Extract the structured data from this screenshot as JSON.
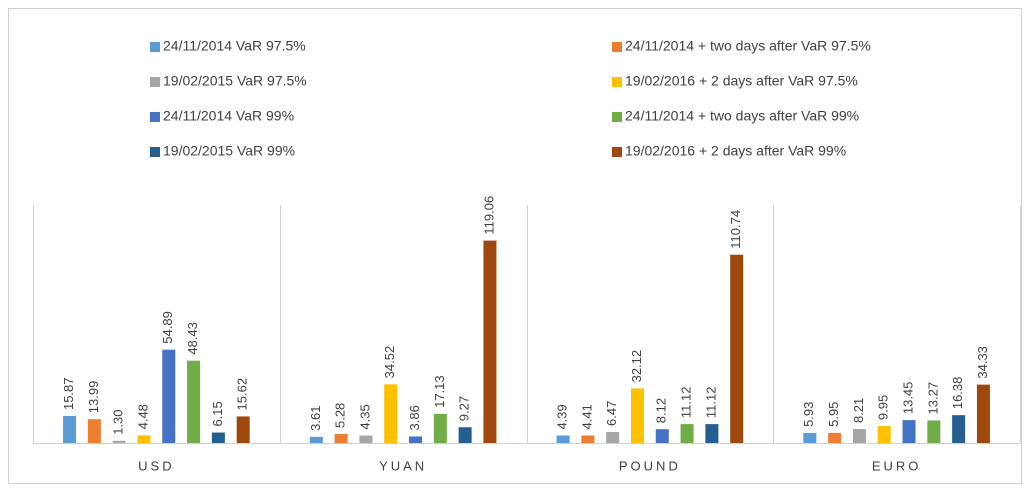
{
  "chart_data": {
    "type": "bar",
    "categories": [
      "USD",
      "YUAN",
      "POUND",
      "EURO"
    ],
    "series": [
      {
        "name": "24/11/2014 VaR 97.5%",
        "color": "#5b9bd5",
        "values": [
          15.87,
          3.61,
          4.39,
          5.93
        ],
        "value_labels": [
          "15.87",
          "3.61",
          "4.39",
          "5.93"
        ]
      },
      {
        "name": "24/11/2014 + two days after VaR 97.5%",
        "color": "#ed7d31",
        "values": [
          13.99,
          5.28,
          4.41,
          5.95
        ],
        "value_labels": [
          "13.99",
          "5.28",
          "4.41",
          "5.95"
        ]
      },
      {
        "name": "19/02/2015 VaR 97.5%",
        "color": "#a5a5a5",
        "values": [
          1.3,
          4.35,
          6.47,
          8.21
        ],
        "value_labels": [
          "1.30",
          "4.35",
          "6.47",
          "8.21"
        ]
      },
      {
        "name": "19/02/2016 + 2 days after VaR 97.5%",
        "color": "#ffc000",
        "values": [
          4.48,
          34.52,
          32.12,
          9.95
        ],
        "value_labels": [
          "4.48",
          "34.52",
          "32.12",
          "9.95"
        ]
      },
      {
        "name": "24/11/2014 VaR 99%",
        "color": "#4472c4",
        "values": [
          54.89,
          3.86,
          8.12,
          13.45
        ],
        "value_labels": [
          "54.89",
          "3.86",
          "8.12",
          "13.45"
        ]
      },
      {
        "name": "24/11/2014 + two days after VaR 99%",
        "color": "#70ad47",
        "values": [
          48.43,
          17.13,
          11.12,
          13.27
        ],
        "value_labels": [
          "48.43",
          "17.13",
          "11.12",
          "13.27"
        ]
      },
      {
        "name": "19/02/2015 VaR 99%",
        "color": "#255e91",
        "values": [
          6.15,
          9.27,
          11.12,
          16.38
        ],
        "value_labels": [
          "6.15",
          "9.27",
          "11.12",
          "16.38"
        ]
      },
      {
        "name": "19/02/2016 + 2 days after VaR 99%",
        "color": "#9e480e",
        "values": [
          15.62,
          119.06,
          110.74,
          34.33
        ],
        "value_labels": [
          "15.62",
          "119.06",
          "110.74",
          "34.33"
        ]
      }
    ],
    "ylim": [
      0,
      140
    ]
  }
}
